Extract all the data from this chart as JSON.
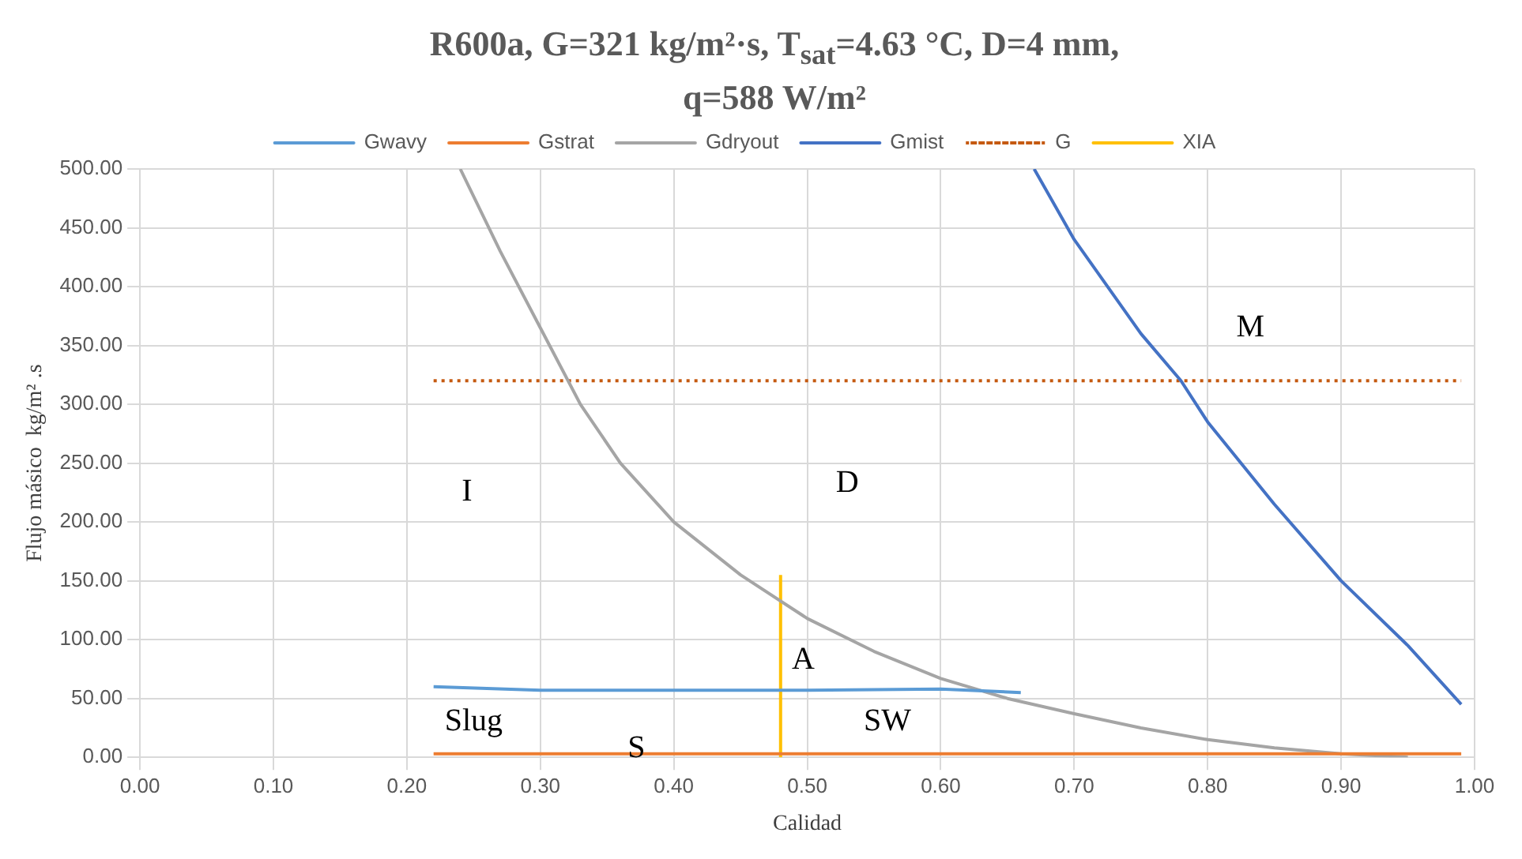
{
  "chart_data": {
    "type": "line",
    "title": "R600a, G=321 kg/m²·s, T$_{sat}$=4.63 °C, D=4 mm, q=588 W/m²",
    "xlabel": "Calidad",
    "ylabel": "Flujo másico  kg/m² .s",
    "series": [
      {
        "name": "Gwavy",
        "color": "#5b9bd5",
        "x": [
          0.22,
          0.3,
          0.4,
          0.5,
          0.6,
          0.66
        ],
        "values": [
          60,
          57,
          57,
          57,
          58,
          55
        ]
      },
      {
        "name": "Gstrat",
        "color": "#ed7d31",
        "x": [
          0.22,
          0.4,
          0.6,
          0.8,
          0.99
        ],
        "values": [
          3,
          3,
          3,
          3,
          3
        ]
      },
      {
        "name": "Gdryout",
        "color": "#a5a5a5",
        "x": [
          0.24,
          0.27,
          0.3,
          0.33,
          0.36,
          0.4,
          0.45,
          0.5,
          0.55,
          0.6,
          0.65,
          0.7,
          0.75,
          0.8,
          0.85,
          0.9,
          0.95
        ],
        "values": [
          500,
          430,
          365,
          300,
          250,
          200,
          155,
          118,
          90,
          67,
          50,
          37,
          25,
          15,
          8,
          3,
          0
        ]
      },
      {
        "name": "Gmist",
        "color": "#4472c4",
        "x": [
          0.67,
          0.7,
          0.75,
          0.78,
          0.8,
          0.85,
          0.9,
          0.95,
          0.99
        ],
        "values": [
          500,
          440,
          360,
          320,
          285,
          215,
          150,
          95,
          45
        ]
      },
      {
        "name": "G",
        "color": "#c55a11",
        "line_style": "dotted",
        "x": [
          0.22,
          0.99
        ],
        "values": [
          320,
          320
        ]
      },
      {
        "name": "XIA",
        "color": "#ffc000",
        "x": [
          0.48,
          0.48
        ],
        "values": [
          0,
          155
        ]
      }
    ],
    "xlim": [
      0,
      1
    ],
    "xticks": [
      {
        "value": 0,
        "label": "0.00"
      },
      {
        "value": 0.1,
        "label": "0.10"
      },
      {
        "value": 0.2,
        "label": "0.20"
      },
      {
        "value": 0.3,
        "label": "0.30"
      },
      {
        "value": 0.4,
        "label": "0.40"
      },
      {
        "value": 0.5,
        "label": "0.50"
      },
      {
        "value": 0.6,
        "label": "0.60"
      },
      {
        "value": 0.7,
        "label": "0.70"
      },
      {
        "value": 0.8,
        "label": "0.80"
      },
      {
        "value": 0.9,
        "label": "0.90"
      },
      {
        "value": 1,
        "label": "1.00"
      }
    ],
    "ylim": [
      0,
      500
    ],
    "yticks": [
      {
        "value": 0,
        "label": "0.00"
      },
      {
        "value": 50,
        "label": "50.00"
      },
      {
        "value": 100,
        "label": "100.00"
      },
      {
        "value": 150,
        "label": "150.00"
      },
      {
        "value": 200,
        "label": "200.00"
      },
      {
        "value": 250,
        "label": "250.00"
      },
      {
        "value": 300,
        "label": "300.00"
      },
      {
        "value": 350,
        "label": "350.00"
      },
      {
        "value": 400,
        "label": "400.00"
      },
      {
        "value": 450,
        "label": "450.00"
      },
      {
        "value": 500,
        "label": "500.00"
      }
    ],
    "annotations": [
      "I",
      "D",
      "M",
      "A",
      "Slug",
      "S",
      "SW"
    ],
    "grid": true,
    "legend": "top",
    "marker": "none"
  }
}
